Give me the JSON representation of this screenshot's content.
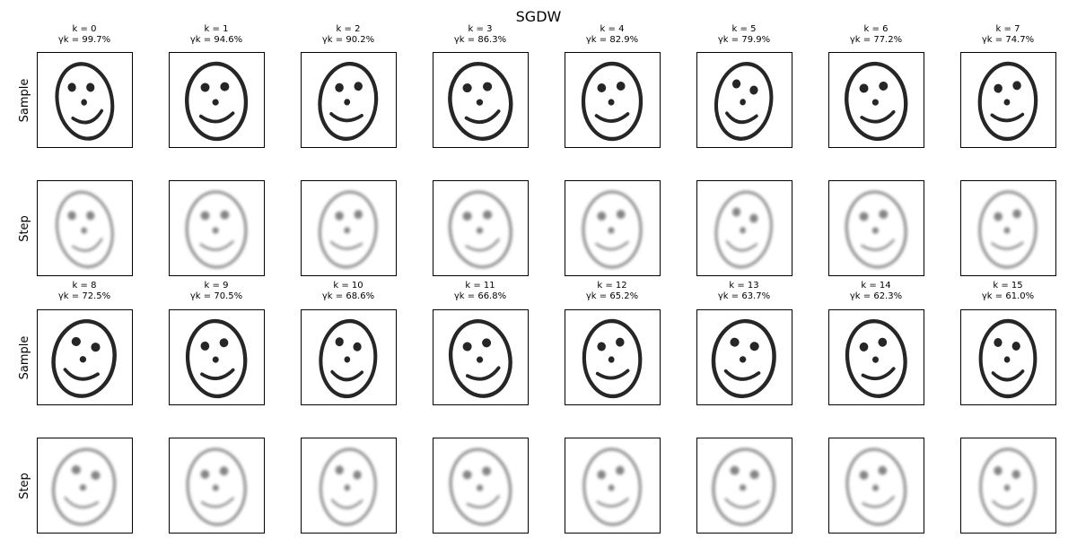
{
  "figure": {
    "title": "SGDW"
  },
  "row_labels": [
    "Sample",
    "Step",
    "Sample",
    "Step"
  ],
  "chart_data": {
    "type": "image_grid",
    "title": "SGDW",
    "rows": [
      "Sample",
      "Step",
      "Sample",
      "Step"
    ],
    "panels": [
      {
        "k_label": "k = 0",
        "gamma_label": "γk = 99.7%",
        "k": 0,
        "gamma_percent": 99.7
      },
      {
        "k_label": "k = 1",
        "gamma_label": "γk = 94.6%",
        "k": 1,
        "gamma_percent": 94.6
      },
      {
        "k_label": "k = 2",
        "gamma_label": "γk = 90.2%",
        "k": 2,
        "gamma_percent": 90.2
      },
      {
        "k_label": "k = 3",
        "gamma_label": "γk = 86.3%",
        "k": 3,
        "gamma_percent": 86.3
      },
      {
        "k_label": "k = 4",
        "gamma_label": "γk = 82.9%",
        "k": 4,
        "gamma_percent": 82.9
      },
      {
        "k_label": "k = 5",
        "gamma_label": "γk = 79.9%",
        "k": 5,
        "gamma_percent": 79.9
      },
      {
        "k_label": "k = 6",
        "gamma_label": "γk = 77.2%",
        "k": 6,
        "gamma_percent": 77.2
      },
      {
        "k_label": "k = 7",
        "gamma_label": "γk = 74.7%",
        "k": 7,
        "gamma_percent": 74.7
      },
      {
        "k_label": "k = 8",
        "gamma_label": "γk = 72.5%",
        "k": 8,
        "gamma_percent": 72.5
      },
      {
        "k_label": "k = 9",
        "gamma_label": "γk = 70.5%",
        "k": 9,
        "gamma_percent": 70.5
      },
      {
        "k_label": "k = 10",
        "gamma_label": "γk = 68.6%",
        "k": 10,
        "gamma_percent": 68.6
      },
      {
        "k_label": "k = 11",
        "gamma_label": "γk = 66.8%",
        "k": 11,
        "gamma_percent": 66.8
      },
      {
        "k_label": "k = 12",
        "gamma_label": "γk = 65.2%",
        "k": 12,
        "gamma_percent": 65.2
      },
      {
        "k_label": "k = 13",
        "gamma_label": "γk = 63.7%",
        "k": 13,
        "gamma_percent": 63.7
      },
      {
        "k_label": "k = 14",
        "gamma_label": "γk = 62.3%",
        "k": 14,
        "gamma_percent": 62.3
      },
      {
        "k_label": "k = 15",
        "gamma_label": "γk = 61.0%",
        "k": 15,
        "gamma_percent": 61.0
      }
    ]
  }
}
